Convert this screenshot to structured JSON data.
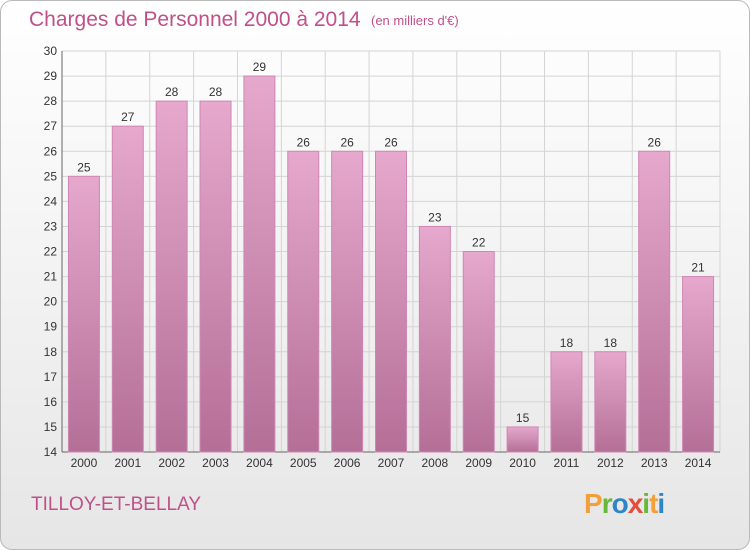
{
  "header": {
    "title": "Charges de Personnel 2000 à 2014",
    "subtitle": "(en milliers d'€)"
  },
  "footer": {
    "commune": "TILLOY-ET-BELLAY",
    "logo": "Proxiti"
  },
  "colors": {
    "bar_light": "#e6a8cd",
    "bar_dark": "#b46f97",
    "title": "#c0508a"
  },
  "chart_data": {
    "type": "bar",
    "categories": [
      "2000",
      "2001",
      "2002",
      "2003",
      "2004",
      "2005",
      "2006",
      "2007",
      "2008",
      "2009",
      "2010",
      "2011",
      "2012",
      "2013",
      "2014"
    ],
    "values": [
      25,
      27,
      28,
      28,
      29,
      26,
      26,
      26,
      23,
      22,
      15,
      18,
      18,
      26,
      21
    ],
    "title": "Charges de Personnel 2000 à 2014",
    "subtitle": "(en milliers d'€)",
    "ylim": [
      14,
      30
    ],
    "yticks": [
      14,
      15,
      16,
      17,
      18,
      19,
      20,
      21,
      22,
      23,
      24,
      25,
      26,
      27,
      28,
      29,
      30
    ],
    "grid": true,
    "data_labels": true
  }
}
